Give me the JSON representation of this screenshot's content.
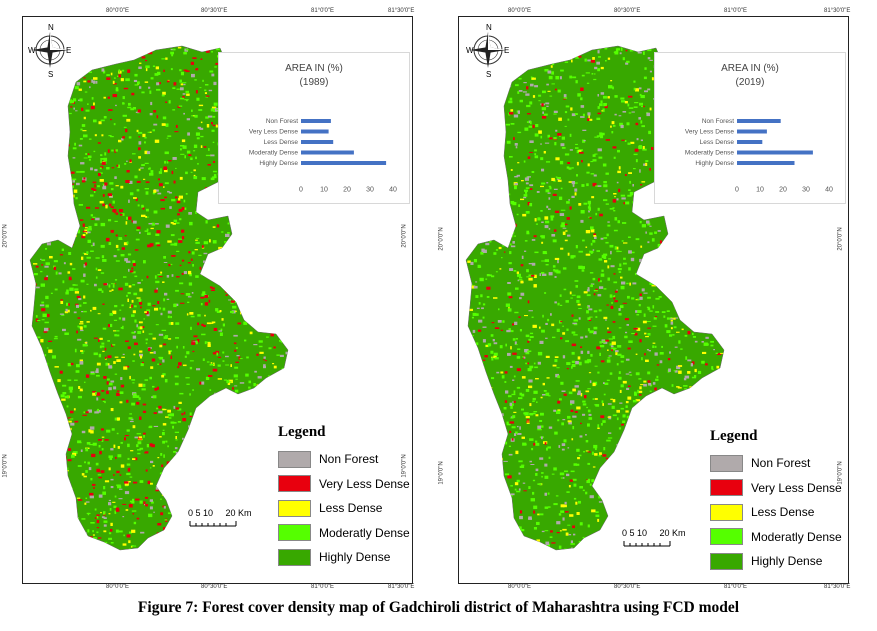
{
  "caption": "Figure 7: Forest cover density map of Gadchiroli district of Maharashtra using FCD model",
  "colors": {
    "non_forest": "#b0aaab",
    "very_less_dense": "#e8000e",
    "less_dense": "#ffff00",
    "moderatly_dense": "#55ff00",
    "highly_dense": "#38a800",
    "bar": "#4472c4"
  },
  "ticks": {
    "top": [
      "80°0'0\"E",
      "80°30'0\"E",
      "81°0'0\"E",
      "81°30'0\"E"
    ],
    "left": [
      "20°0'0\"N",
      "19°0'0\"N"
    ]
  },
  "panels": [
    {
      "year_label": "(1989)",
      "chart_data": {
        "type": "bar",
        "orientation": "horizontal",
        "title": "AREA IN (%)",
        "subtitle": "(1989)",
        "categories": [
          "Non Forest",
          "Very Less Dense",
          "Less Dense",
          "Moderatly Dense",
          "Highly Dense"
        ],
        "values": [
          13,
          12,
          14,
          23,
          37
        ],
        "xlim": [
          0,
          40
        ],
        "xticks": [
          "0",
          "10",
          "20",
          "30",
          "40"
        ]
      }
    },
    {
      "year_label": "(2019)",
      "chart_data": {
        "type": "bar",
        "orientation": "horizontal",
        "title": "AREA IN (%)",
        "subtitle": "(2019)",
        "categories": [
          "Non Forest",
          "Very Less Dense",
          "Less Dense",
          "Moderatly Dense",
          "Highly Dense"
        ],
        "values": [
          19,
          13,
          11,
          33,
          25
        ],
        "xlim": [
          0,
          40
        ],
        "xticks": [
          "0",
          "10",
          "20",
          "30",
          "40"
        ]
      }
    }
  ],
  "legend": {
    "title": "Legend",
    "items": [
      "Non Forest",
      "Very Less Dense",
      "Less Dense",
      "Moderatly Dense",
      "Highly Dense"
    ]
  },
  "scale": {
    "numbers": "0 5 10",
    "end": "20 Km"
  },
  "compass": {
    "n": "N",
    "s": "S",
    "e": "E",
    "w": "W"
  }
}
